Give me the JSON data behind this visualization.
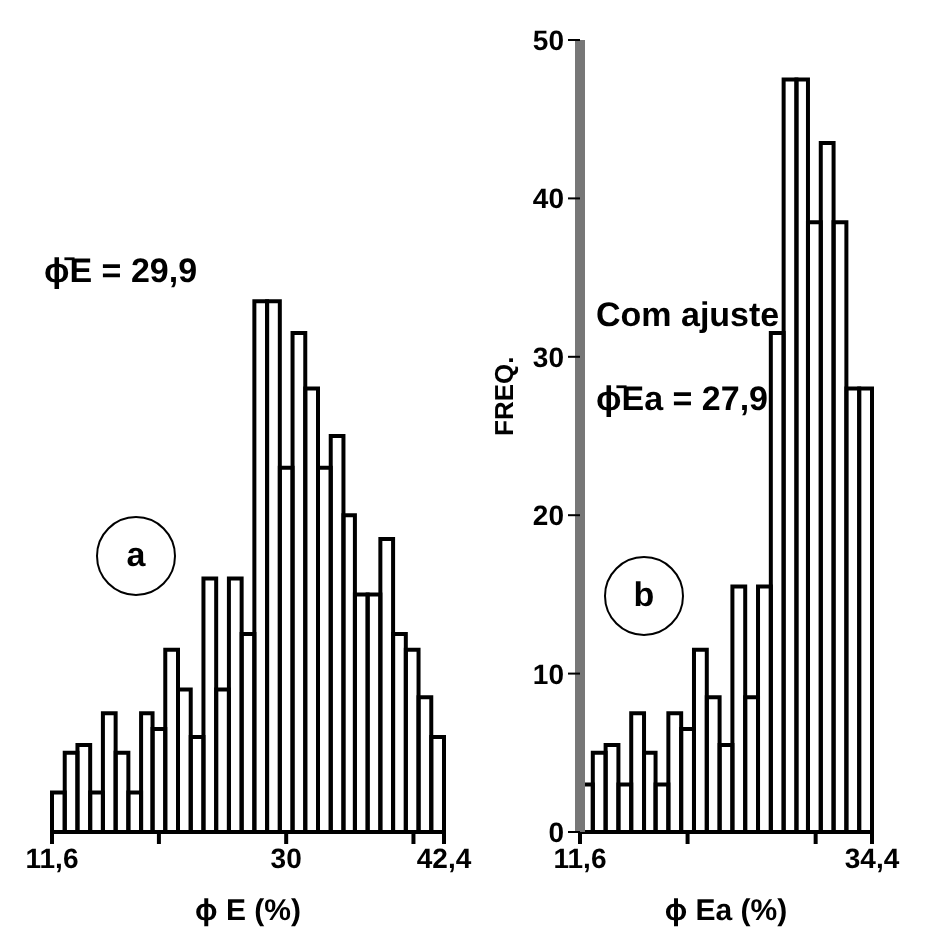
{
  "chart_data": [
    {
      "type": "histogram",
      "xlabel": "ϕ E (%)",
      "color": "#000000",
      "bins": [
        11.6,
        12.6,
        13.6,
        14.6,
        15.6,
        16.6,
        17.6,
        18.6,
        19.5,
        20.5,
        21.5,
        22.5,
        23.5,
        24.5,
        25.5,
        26.5,
        27.5,
        28.5,
        29.5,
        30.5,
        31.5,
        32.5,
        33.5,
        34.5,
        35.4,
        36.4,
        37.4,
        38.4,
        39.4,
        40.4,
        41.4,
        42.4
      ],
      "values": [
        2.5,
        5,
        5.5,
        2.5,
        7.5,
        5,
        2.5,
        7.5,
        6.5,
        11.5,
        9,
        6,
        16,
        9,
        16,
        12.5,
        33.5,
        33.5,
        23,
        31.5,
        28,
        23,
        25,
        20,
        15,
        15,
        18.5,
        12.5,
        11.5,
        8.5,
        6
      ],
      "xlim": [
        11.6,
        42.4
      ],
      "xticks": [
        {
          "value": 11.6,
          "label": "11,6"
        },
        {
          "value": 20,
          "label": null
        },
        30,
        {
          "value": 40,
          "label": null
        },
        {
          "value": 42.4,
          "label": "42,4"
        }
      ],
      "ylim": [
        0,
        50
      ],
      "tick_labels": "x",
      "annotations": [
        "ϕ̄E = 29,9",
        "a"
      ]
    },
    {
      "type": "histogram",
      "xlabel": "ϕ Ea (%)",
      "ylabel": "FREQ.",
      "color": "#000000",
      "bins": [
        11.6,
        12.6,
        13.6,
        14.6,
        15.6,
        16.6,
        17.5,
        18.5,
        19.5,
        20.5,
        21.5,
        22.5,
        23.5,
        24.5,
        25.5,
        26.5,
        27.5,
        28.5,
        29.4,
        30.4,
        31.4,
        32.4,
        33.4,
        34.4
      ],
      "values": [
        3,
        5,
        5.5,
        3,
        7.5,
        5,
        3,
        7.5,
        6.5,
        11.5,
        8.5,
        5.5,
        15.5,
        8.5,
        15.5,
        31.5,
        47.5,
        47.5,
        38.5,
        43.5,
        38.5,
        28,
        28
      ],
      "xlim": [
        11.6,
        34.4
      ],
      "xticks": [
        {
          "value": 11.6,
          "label": "11,6"
        },
        {
          "value": 20,
          "label": null
        },
        {
          "value": 30,
          "label": null
        },
        {
          "value": 34.4,
          "label": "34,4"
        }
      ],
      "ylim": [
        0,
        50
      ],
      "yticks": [
        0,
        10,
        20,
        30,
        40,
        50
      ],
      "annotations": [
        "Com ajuste",
        "ϕ̄Ea = 27,9",
        "b"
      ]
    }
  ]
}
